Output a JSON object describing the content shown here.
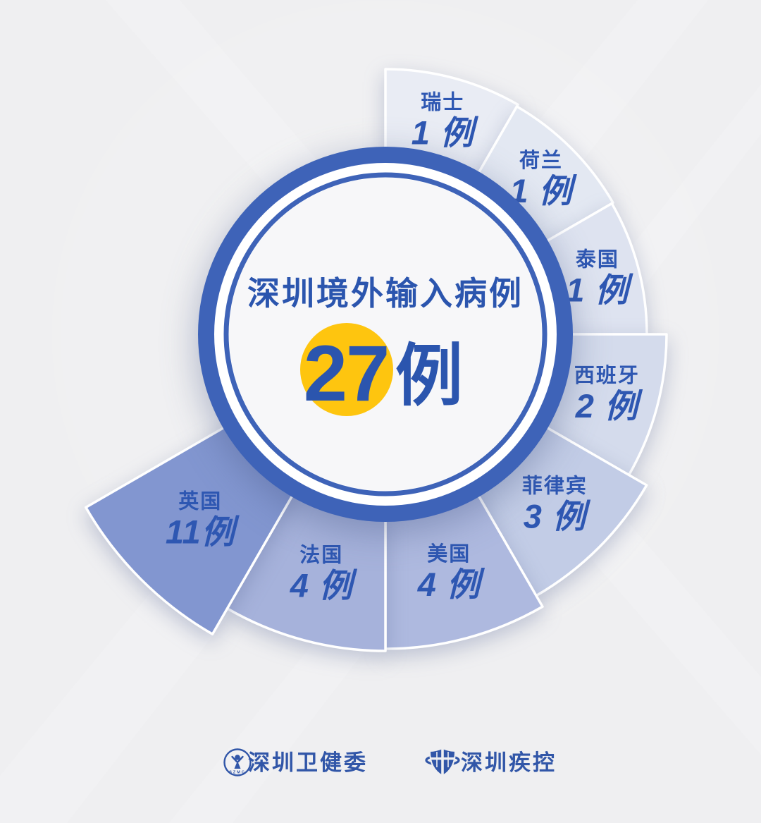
{
  "chart_data": {
    "type": "pie",
    "variant": "polar-rose-spiral",
    "title": "深圳境外输入病例",
    "total_number": "27",
    "total_unit": "例",
    "total_value": 27,
    "unit": "例",
    "categories": [
      "瑞士",
      "荷兰",
      "泰国",
      "西班牙",
      "菲律宾",
      "美国",
      "法国",
      "英国"
    ],
    "values": [
      1,
      1,
      1,
      2,
      3,
      4,
      4,
      11
    ],
    "legend_position": "none",
    "grid": false,
    "angles": {
      "start_deg": 0,
      "per_segment_deg": 30
    },
    "segments": [
      {
        "name": "瑞士",
        "name_en": "switzerland",
        "value": 1,
        "label": "1 例",
        "color": "#E9ECF4",
        "outer_radius": 376
      },
      {
        "name": "荷兰",
        "name_en": "netherlands",
        "value": 1,
        "label": "1 例",
        "color": "#E3E8F2",
        "outer_radius": 373
      },
      {
        "name": "泰国",
        "name_en": "thailand",
        "value": 1,
        "label": "1 例",
        "color": "#DEE3F0",
        "outer_radius": 371
      },
      {
        "name": "西班牙",
        "name_en": "spain",
        "value": 2,
        "label": "2 例",
        "color": "#D4DBEC",
        "outer_radius": 399
      },
      {
        "name": "菲律宾",
        "name_en": "philippines",
        "value": 3,
        "label": "3 例",
        "color": "#C2CCE6",
        "outer_radius": 428
      },
      {
        "name": "美国",
        "name_en": "usa",
        "value": 4,
        "label": "4 例",
        "color": "#AEB9DF",
        "outer_radius": 446
      },
      {
        "name": "法国",
        "name_en": "france",
        "value": 4,
        "label": "4 例",
        "color": "#A6B2DB",
        "outer_radius": 449
      },
      {
        "name": "英国",
        "name_en": "uk",
        "value": 11,
        "label": "11例",
        "color": "#8296D0",
        "outer_radius": 491
      }
    ]
  },
  "colors": {
    "background": "#EFEFF1",
    "ring_blue": "#3E63B8",
    "text_blue": "#2B55AE",
    "count_blue": "#2E57B2",
    "accent_yellow": "#FEC50F",
    "footer_blue": "#3156A8"
  },
  "footer": {
    "left": {
      "label": "深圳卫健委",
      "seal_letters": "SZMC"
    },
    "right": {
      "label": "深圳疾控"
    }
  }
}
